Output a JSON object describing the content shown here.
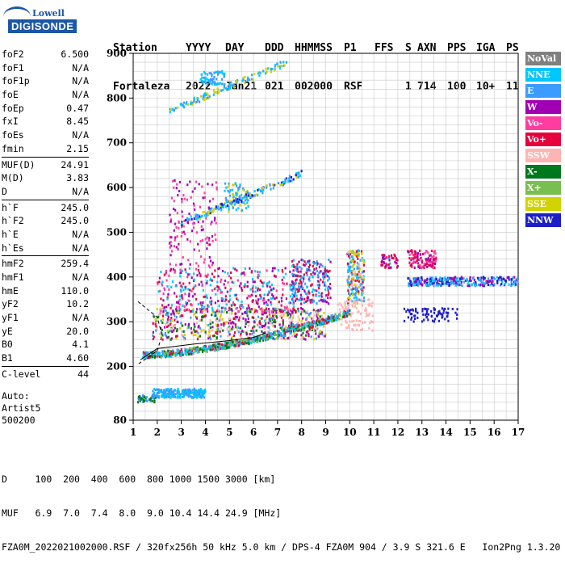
{
  "logo": {
    "line1": "Lowell",
    "line2": "DIGISONDE"
  },
  "header": {
    "line1": [
      "Station",
      "YYYY",
      "DAY",
      "DDD",
      "HHMMSS",
      "P1",
      "FFS",
      "S",
      "AXN",
      "PPS",
      "IGA",
      "PS"
    ],
    "line2": [
      "Fortaleza",
      "2022",
      "Jan21",
      "021",
      "002000",
      "RSF",
      "",
      "1",
      "714",
      "100",
      "10+",
      "11"
    ]
  },
  "params": {
    "group1": [
      {
        "name": "foF2",
        "value": "6.500"
      },
      {
        "name": "foF1",
        "value": "N/A"
      },
      {
        "name": "foF1p",
        "value": "N/A"
      },
      {
        "name": "foE",
        "value": "N/A"
      },
      {
        "name": "foEp",
        "value": "0.47"
      },
      {
        "name": "fxI",
        "value": "8.45"
      },
      {
        "name": "foEs",
        "value": "N/A"
      },
      {
        "name": "fmin",
        "value": "2.15"
      }
    ],
    "group2": [
      {
        "name": "MUF(D)",
        "value": "24.91"
      },
      {
        "name": "M(D)",
        "value": "3.83"
      },
      {
        "name": "D",
        "value": "N/A"
      }
    ],
    "group3": [
      {
        "name": "h`F",
        "value": "245.0"
      },
      {
        "name": "h`F2",
        "value": "245.0"
      },
      {
        "name": "h`E",
        "value": "N/A"
      },
      {
        "name": "h`Es",
        "value": "N/A"
      }
    ],
    "group4": [
      {
        "name": "hmF2",
        "value": "259.4"
      },
      {
        "name": "hmF1",
        "value": "N/A"
      },
      {
        "name": "hmE",
        "value": "110.0"
      },
      {
        "name": "yF2",
        "value": "10.2"
      },
      {
        "name": "yF1",
        "value": "N/A"
      },
      {
        "name": "yE",
        "value": "20.0"
      },
      {
        "name": "B0",
        "value": "4.1"
      },
      {
        "name": "B1",
        "value": "4.60"
      }
    ],
    "group5": [
      {
        "name": "C-level",
        "value": "44"
      }
    ]
  },
  "auto": {
    "line1": "Auto:",
    "line2": "Artist5",
    "line3": "500200"
  },
  "legend": [
    {
      "label": "NoVal",
      "color": "#808080"
    },
    {
      "label": "NNE",
      "color": "#00c8ff"
    },
    {
      "label": "E",
      "color": "#3c9bff"
    },
    {
      "label": "W",
      "color": "#a000b4"
    },
    {
      "label": "Vo-",
      "color": "#ff3ca0"
    },
    {
      "label": "Vo+",
      "color": "#e6003c"
    },
    {
      "label": "SSW",
      "color": "#ffb4b4"
    },
    {
      "label": "X-",
      "color": "#00781e"
    },
    {
      "label": "X+",
      "color": "#78be50"
    },
    {
      "label": "SSE",
      "color": "#d2d200"
    },
    {
      "label": "NNW",
      "color": "#1e1ec8"
    }
  ],
  "footer": {
    "line1": "D     100  200  400  600  800 1000 1500 3000 [km]",
    "line2": "MUF   6.9  7.0  7.4  8.0  9.0 10.4 14.4 24.9 [MHz]",
    "line3": "FZA0M_2022021002000.RSF / 320fx256h 50 kHz 5.0 km / DPS-4 FZA0M 904 / 3.9 S 321.6 E   Ion2Png 1.3.20"
  },
  "chart_data": {
    "type": "scatter",
    "title": "",
    "xlabel": "",
    "ylabel": "",
    "xlim": [
      1,
      17
    ],
    "ylim": [
      80,
      900
    ],
    "x_ticks": [
      1,
      2,
      3,
      4,
      5,
      6,
      7,
      8,
      9,
      10,
      11,
      12,
      13,
      14,
      15,
      16,
      17
    ],
    "y_ticks": [
      80,
      200,
      300,
      400,
      500,
      600,
      700,
      800,
      900
    ],
    "grid": true,
    "grid_x_step": 0.5,
    "grid_y_step": 20,
    "legend_placement": "right",
    "clusters": [
      {
        "name": "E",
        "x": [
          1.8,
          4.0
        ],
        "y": [
          130,
          150
        ],
        "n": 260,
        "colors": [
          "#3c9bff",
          "#00c8ff"
        ]
      },
      {
        "name": "E",
        "x": [
          1.2,
          2.0
        ],
        "y": [
          120,
          135
        ],
        "n": 40,
        "colors": [
          "#00781e",
          "#3c9bff"
        ]
      },
      {
        "name": "SSW",
        "x": [
          1.8,
          9.0
        ],
        "y": [
          260,
          330
        ],
        "n": 650,
        "colors": [
          "#ffb4b4",
          "#e6003c",
          "#3c9bff",
          "#a000b4",
          "#d2d200",
          "#00781e"
        ]
      },
      {
        "name": "W",
        "x": [
          2.0,
          8.0
        ],
        "y": [
          320,
          420
        ],
        "n": 420,
        "colors": [
          "#a000b4",
          "#ff3ca0",
          "#e6003c",
          "#00c8ff"
        ]
      },
      {
        "name": "NNE",
        "x": [
          7.6,
          9.2
        ],
        "y": [
          340,
          440
        ],
        "n": 220,
        "colors": [
          "#00c8ff",
          "#3c9bff",
          "#e6003c",
          "#a000b4"
        ]
      },
      {
        "name": "W",
        "x": [
          2.5,
          4.5
        ],
        "y": [
          420,
          620
        ],
        "n": 140,
        "colors": [
          "#a000b4",
          "#ff3ca0"
        ]
      },
      {
        "name": "NNE",
        "x": [
          9.9,
          10.6
        ],
        "y": [
          340,
          460
        ],
        "n": 220,
        "colors": [
          "#00c8ff",
          "#3c9bff",
          "#ffb4b4",
          "#e6003c",
          "#d2d200"
        ]
      },
      {
        "name": "Vo+",
        "x": [
          11.3,
          12.0
        ],
        "y": [
          420,
          450
        ],
        "n": 50,
        "colors": [
          "#e6003c",
          "#3c9bff",
          "#a000b4"
        ]
      },
      {
        "name": "Vo+",
        "x": [
          12.4,
          13.6
        ],
        "y": [
          420,
          460
        ],
        "n": 120,
        "colors": [
          "#e6003c",
          "#a000b4",
          "#ff3ca0"
        ]
      },
      {
        "name": "NNW",
        "x": [
          12.4,
          17.0
        ],
        "y": [
          380,
          400
        ],
        "n": 300,
        "colors": [
          "#a000b4",
          "#3c9bff",
          "#1e1ec8",
          "#00c8ff"
        ]
      },
      {
        "name": "NNW",
        "x": [
          12.2,
          14.5
        ],
        "y": [
          300,
          330
        ],
        "n": 80,
        "colors": [
          "#1e1ec8"
        ]
      },
      {
        "name": "SSW",
        "x": [
          9.5,
          11.0
        ],
        "y": [
          280,
          350
        ],
        "n": 90,
        "colors": [
          "#ffb4b4"
        ]
      },
      {
        "name": "E",
        "x": [
          3.8,
          4.8
        ],
        "y": [
          830,
          860
        ],
        "n": 60,
        "colors": [
          "#3c9bff",
          "#00c8ff"
        ]
      },
      {
        "name": "E",
        "x": [
          4.8,
          5.8
        ],
        "y": [
          545,
          610
        ],
        "n": 80,
        "colors": [
          "#3c9bff",
          "#00c8ff",
          "#d2d200"
        ]
      }
    ],
    "traces": [
      {
        "name": "E",
        "x_start": 1.4,
        "x_end": 10.0,
        "y_start": 225,
        "y_end": 320,
        "curve": 1.6,
        "n": 700,
        "colors": [
          "#3c9bff",
          "#00c8ff",
          "#e6003c",
          "#78be50",
          "#00781e"
        ]
      },
      {
        "name": "E",
        "x_start": 2.5,
        "x_end": 7.4,
        "y_start": 770,
        "y_end": 880,
        "curve": 1.0,
        "n": 140,
        "colors": [
          "#3c9bff",
          "#00c8ff",
          "#d2d200"
        ]
      },
      {
        "name": "E",
        "x_start": 3.0,
        "x_end": 8.0,
        "y_start": 520,
        "y_end": 630,
        "curve": 1.0,
        "n": 160,
        "colors": [
          "#3c9bff",
          "#00c8ff",
          "#d2d200",
          "#1e1ec8"
        ]
      }
    ],
    "profile_line": [
      [
        1.3,
        215
      ],
      [
        2.0,
        240
      ],
      [
        3.5,
        250
      ],
      [
        5.0,
        258
      ],
      [
        6.0,
        265
      ],
      [
        6.5,
        275
      ]
    ],
    "profile_dashed": [
      [
        1.2,
        345
      ],
      [
        2.0,
        310
      ],
      [
        2.2,
        270
      ],
      [
        2.0,
        235
      ],
      [
        1.2,
        205
      ]
    ]
  }
}
